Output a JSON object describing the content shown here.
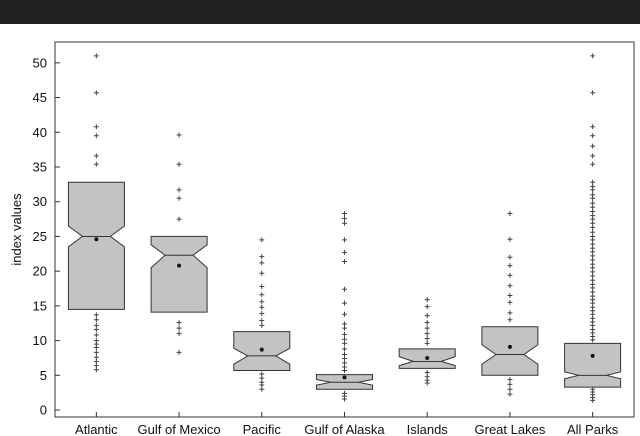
{
  "chart_data": {
    "type": "boxplot",
    "ylabel": "index values",
    "ylim": [
      -1,
      53
    ],
    "yticks": [
      0,
      5,
      10,
      15,
      20,
      25,
      30,
      35,
      40,
      45,
      50
    ],
    "grid": false,
    "notched": true,
    "colors": {
      "box_fill": "#c3c3c3",
      "box_stroke": "#333333",
      "outlier": "#444444",
      "mean": "#111111"
    },
    "series": [
      {
        "category": "Atlantic",
        "min": 14.5,
        "q1": 14.5,
        "median": 25.0,
        "q3": 32.8,
        "max": 32.8,
        "notch_low": 23.5,
        "notch_high": 26.5,
        "mean": 24.6,
        "outliers": [
          51.0,
          45.7,
          40.8,
          39.5,
          36.6,
          35.4,
          13.7,
          13.0,
          12.2,
          11.6,
          10.8,
          10.0,
          9.5,
          9.0,
          8.3,
          7.6,
          7.0,
          6.4,
          5.8
        ]
      },
      {
        "category": "Gulf of Mexico",
        "min": 14.1,
        "q1": 14.1,
        "median": 22.3,
        "q3": 25.0,
        "max": 25.0,
        "notch_low": 20.5,
        "notch_high": 23.8,
        "mean": 20.8,
        "outliers": [
          39.6,
          35.4,
          31.7,
          30.5,
          27.5,
          12.6,
          11.8,
          11.0,
          8.3
        ]
      },
      {
        "category": "Pacific",
        "min": 5.7,
        "q1": 5.7,
        "median": 7.8,
        "q3": 11.3,
        "max": 11.3,
        "notch_low": 6.6,
        "notch_high": 8.9,
        "mean": 8.7,
        "outliers": [
          24.5,
          22.1,
          21.2,
          19.7,
          17.8,
          16.6,
          15.6,
          14.8,
          13.9,
          12.9,
          12.2,
          5.2,
          4.6,
          4.0,
          3.6,
          3.0
        ]
      },
      {
        "category": "Gulf of Alaska",
        "min": 3.0,
        "q1": 3.0,
        "median": 4.0,
        "q3": 5.1,
        "max": 5.1,
        "notch_low": 3.6,
        "notch_high": 4.4,
        "mean": 4.7,
        "outliers": [
          28.3,
          27.6,
          26.9,
          24.5,
          22.7,
          21.4,
          17.4,
          15.4,
          13.8,
          12.4,
          11.8,
          10.9,
          10.2,
          9.6,
          8.8,
          8.0,
          7.4,
          6.8,
          6.2,
          5.7,
          2.4,
          2.0,
          1.6
        ]
      },
      {
        "category": "Islands",
        "min": 6.0,
        "q1": 6.0,
        "median": 7.0,
        "q3": 8.8,
        "max": 8.8,
        "notch_low": 6.4,
        "notch_high": 7.7,
        "mean": 7.5,
        "outliers": [
          15.9,
          14.9,
          13.6,
          12.6,
          11.8,
          11.0,
          10.3,
          9.6,
          5.4,
          4.8,
          4.3,
          3.9
        ]
      },
      {
        "category": "Great Lakes",
        "min": 5.0,
        "q1": 5.0,
        "median": 8.0,
        "q3": 12.0,
        "max": 12.0,
        "notch_low": 6.6,
        "notch_high": 9.4,
        "mean": 9.1,
        "outliers": [
          28.3,
          24.6,
          22.0,
          20.8,
          19.4,
          17.9,
          16.5,
          15.5,
          14.0,
          13.0,
          4.4,
          3.7,
          3.0,
          2.3
        ]
      },
      {
        "category": "All Parks",
        "min": 3.3,
        "q1": 3.3,
        "median": 5.0,
        "q3": 9.6,
        "max": 9.6,
        "notch_low": 4.5,
        "notch_high": 5.5,
        "mean": 7.8,
        "outliers": [
          51.0,
          45.7,
          40.8,
          39.5,
          38.0,
          36.6,
          35.4,
          32.8,
          32.2,
          31.7,
          31.0,
          30.5,
          29.8,
          29.2,
          28.6,
          28.0,
          27.5,
          26.9,
          26.3,
          25.6,
          25.0,
          24.5,
          23.9,
          23.3,
          22.8,
          22.2,
          21.6,
          21.0,
          20.5,
          19.9,
          19.3,
          18.7,
          18.1,
          17.6,
          17.0,
          16.4,
          15.9,
          15.4,
          14.8,
          14.3,
          13.8,
          13.2,
          12.7,
          12.2,
          11.6,
          11.1,
          10.6,
          10.1,
          3.0,
          2.6,
          2.2,
          1.8,
          1.4
        ]
      }
    ]
  }
}
